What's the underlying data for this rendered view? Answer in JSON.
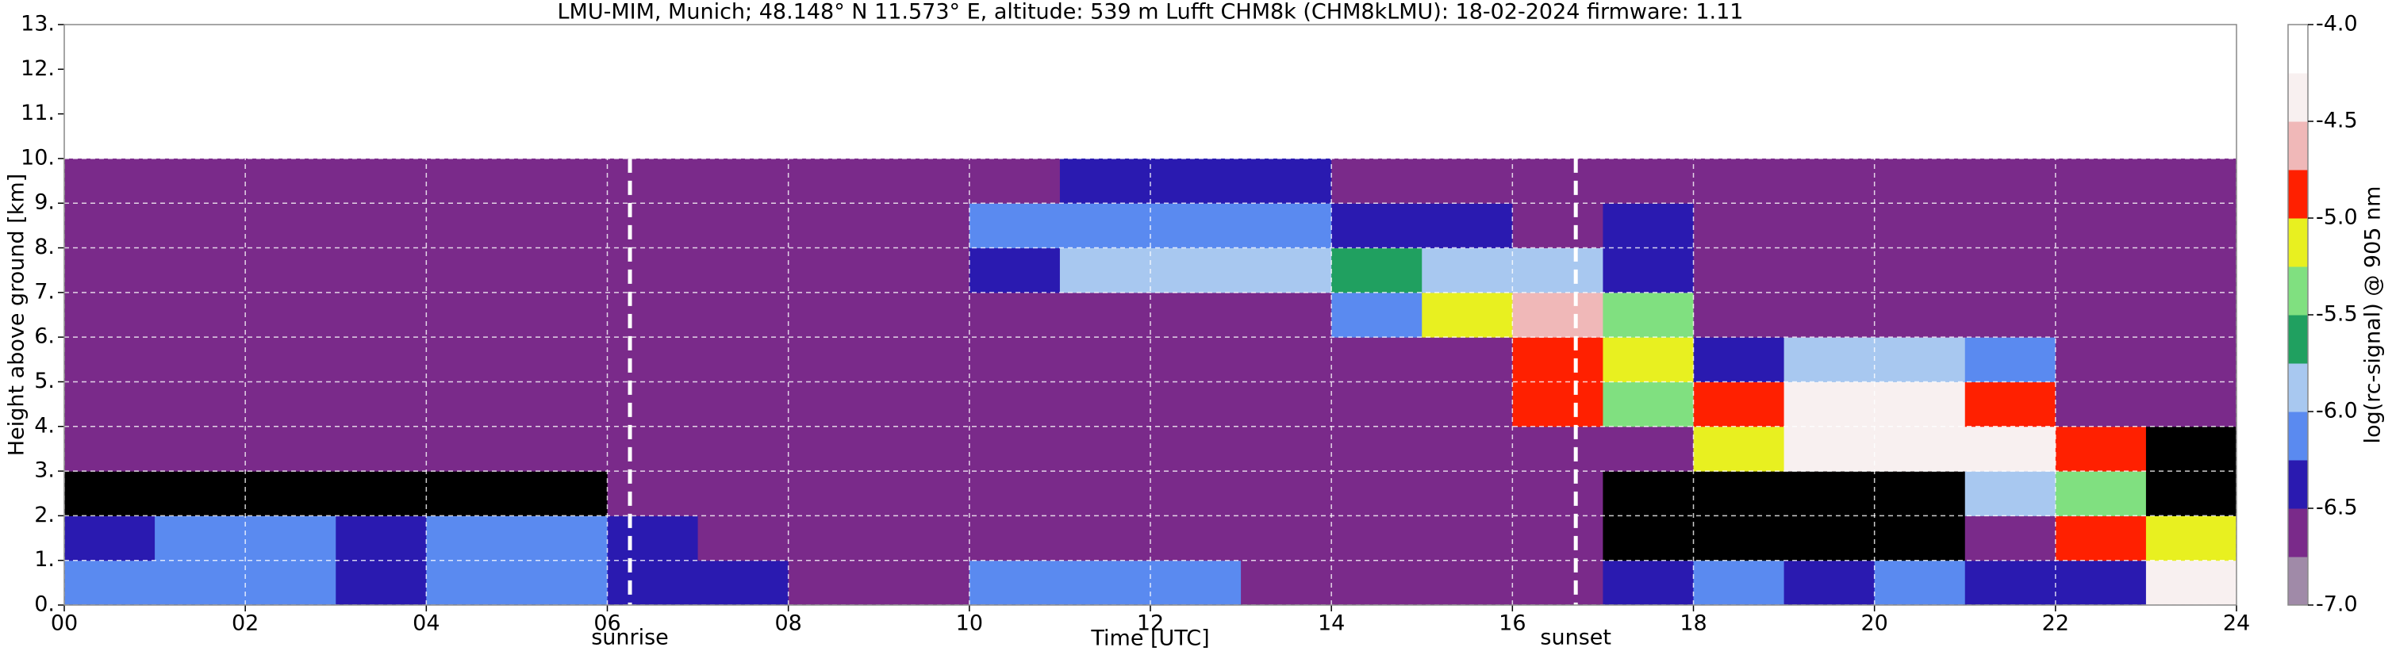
{
  "chart_data": {
    "type": "heatmap",
    "title": "LMU-MIM, Munich; 48.148° N 11.573° E, altitude: 539 m    Lufft CHM8k (CHM8kLMU): 18-02-2024    firmware: 1.11",
    "xlabel": "Time [UTC]",
    "ylabel": "Height above ground [km]",
    "colorbar_label": "log(rc-signal) @ 905 nm",
    "xlim": [
      0,
      24
    ],
    "ylim": [
      0,
      13
    ],
    "xticks": [
      {
        "value": 0,
        "label": "00"
      },
      {
        "value": 2,
        "label": "02"
      },
      {
        "value": 4,
        "label": "04"
      },
      {
        "value": 6,
        "label": "06"
      },
      {
        "value": 8,
        "label": "08"
      },
      {
        "value": 10,
        "label": "10"
      },
      {
        "value": 12,
        "label": "12"
      },
      {
        "value": 14,
        "label": "14"
      },
      {
        "value": 16,
        "label": "16"
      },
      {
        "value": 18,
        "label": "18"
      },
      {
        "value": 20,
        "label": "20"
      },
      {
        "value": 22,
        "label": "22"
      },
      {
        "value": 24,
        "label": "24"
      }
    ],
    "yticks": [
      {
        "value": 0,
        "label": "0."
      },
      {
        "value": 1,
        "label": "1."
      },
      {
        "value": 2,
        "label": "2."
      },
      {
        "value": 3,
        "label": "3."
      },
      {
        "value": 4,
        "label": "4."
      },
      {
        "value": 5,
        "label": "5."
      },
      {
        "value": 6,
        "label": "6."
      },
      {
        "value": 7,
        "label": "7."
      },
      {
        "value": 8,
        "label": "8."
      },
      {
        "value": 9,
        "label": "9."
      },
      {
        "value": 10,
        "label": "10."
      },
      {
        "value": 11,
        "label": "11."
      },
      {
        "value": 12,
        "label": "12."
      },
      {
        "value": 13,
        "label": "13."
      }
    ],
    "grid": true,
    "xbins": [
      0,
      1,
      2,
      3,
      4,
      5,
      6,
      7,
      8,
      9,
      10,
      11,
      12,
      13,
      14,
      15,
      16,
      17,
      18,
      19,
      20,
      21,
      22,
      23,
      24
    ],
    "ybins": [
      0,
      1,
      2,
      3,
      4,
      5,
      6,
      7,
      8,
      9,
      10
    ],
    "z": [
      [
        -6.2,
        -6.2,
        -6.1,
        -6.3,
        -6.1,
        -6.2,
        -6.3,
        -6.5,
        -6.6,
        -6.6,
        -6.2,
        -6.1,
        -6.2,
        -6.7,
        -6.7,
        -6.6,
        -6.6,
        -6.5,
        -6.2,
        -6.3,
        -6.2,
        -6.3,
        -6.4,
        -4.4
      ],
      [
        -6.3,
        -6.1,
        -6.1,
        -6.4,
        -6.2,
        -6.1,
        -6.4,
        -6.6,
        -6.6,
        -6.6,
        -6.6,
        -6.6,
        -6.6,
        -6.6,
        -6.6,
        -6.6,
        -6.6,
        -7.2,
        -7.2,
        -7.2,
        -7.2,
        -6.6,
        -5.0,
        -5.2
      ],
      [
        -7.2,
        -7.2,
        -7.2,
        -7.2,
        -7.2,
        -7.2,
        -6.7,
        -6.6,
        -6.6,
        -6.6,
        -6.6,
        -6.6,
        -6.6,
        -6.6,
        -6.6,
        -6.6,
        -6.7,
        -7.2,
        -7.2,
        -7.2,
        -7.2,
        -6.0,
        -5.4,
        -7.2
      ],
      [
        -6.7,
        -6.7,
        -6.7,
        -6.7,
        -6.7,
        -6.7,
        -6.6,
        -6.6,
        -6.6,
        -6.6,
        -6.6,
        -6.6,
        -6.6,
        -6.6,
        -6.6,
        -6.6,
        -6.6,
        -6.7,
        -5.2,
        -4.3,
        -4.4,
        -4.4,
        -5.0,
        -7.2
      ],
      [
        -6.6,
        -6.6,
        -6.6,
        -6.6,
        -6.6,
        -6.6,
        -6.6,
        -6.6,
        -6.6,
        -6.6,
        -6.6,
        -6.6,
        -6.6,
        -6.6,
        -6.6,
        -6.6,
        -5.0,
        -5.3,
        -4.8,
        -4.5,
        -4.3,
        -4.8,
        -6.6,
        -6.6
      ],
      [
        -6.6,
        -6.6,
        -6.6,
        -6.6,
        -6.6,
        -6.6,
        -6.6,
        -6.6,
        -6.6,
        -6.6,
        -6.6,
        -6.6,
        -6.6,
        -6.6,
        -6.6,
        -6.6,
        -4.9,
        -5.2,
        -6.3,
        -6.0,
        -5.8,
        -6.2,
        -6.6,
        -6.6
      ],
      [
        -6.6,
        -6.6,
        -6.6,
        -6.6,
        -6.6,
        -6.6,
        -6.6,
        -6.6,
        -6.6,
        -6.6,
        -6.6,
        -6.6,
        -6.6,
        -6.6,
        -6.2,
        -5.2,
        -4.7,
        -5.4,
        -6.6,
        -6.6,
        -6.6,
        -6.6,
        -6.6,
        -6.6
      ],
      [
        -6.6,
        -6.6,
        -6.6,
        -6.6,
        -6.6,
        -6.6,
        -6.6,
        -6.6,
        -6.6,
        -6.6,
        -6.3,
        -6.0,
        -5.9,
        -5.8,
        -5.6,
        -5.8,
        -6.0,
        -6.5,
        -6.6,
        -6.6,
        -6.6,
        -6.6,
        -6.6,
        -6.6
      ],
      [
        -6.6,
        -6.6,
        -6.6,
        -6.6,
        -6.6,
        -6.6,
        -6.6,
        -6.6,
        -6.6,
        -6.6,
        -6.2,
        -6.2,
        -6.1,
        -6.2,
        -6.3,
        -6.5,
        -6.6,
        -6.5,
        -6.6,
        -6.6,
        -6.6,
        -6.6,
        -6.6,
        -6.6
      ],
      [
        -6.6,
        -6.6,
        -6.6,
        -6.6,
        -6.6,
        -6.6,
        -6.6,
        -6.6,
        -6.6,
        -6.6,
        -6.6,
        -6.4,
        -6.4,
        -6.4,
        -6.6,
        -6.6,
        -6.6,
        -6.6,
        -6.6,
        -6.6,
        -6.6,
        -6.6,
        -6.6,
        -6.6
      ]
    ],
    "clim": [
      -7,
      -4
    ],
    "cticks": [
      {
        "value": -4,
        "label": "-4.0"
      },
      {
        "value": -4.5,
        "label": "-4.5"
      },
      {
        "value": -5,
        "label": "-5.0"
      },
      {
        "value": -5.5,
        "label": "-5.5"
      },
      {
        "value": -6,
        "label": "-6.0"
      },
      {
        "value": -6.5,
        "label": "-6.5"
      },
      {
        "value": -7,
        "label": "-7.0"
      }
    ],
    "colors": [
      "#a08aa8",
      "#7a2a8a",
      "#2a1ab0",
      "#5a8af0",
      "#a8c8f0",
      "#20a060",
      "#80e080",
      "#e8f020",
      "#ff2000",
      "#f0b8b8",
      "#f8f0f0",
      "#ffffff"
    ],
    "under_color": "#000000",
    "annotations": [
      {
        "label": "sunrise",
        "x": 6.25
      },
      {
        "label": "sunset",
        "x": 16.7
      }
    ]
  }
}
